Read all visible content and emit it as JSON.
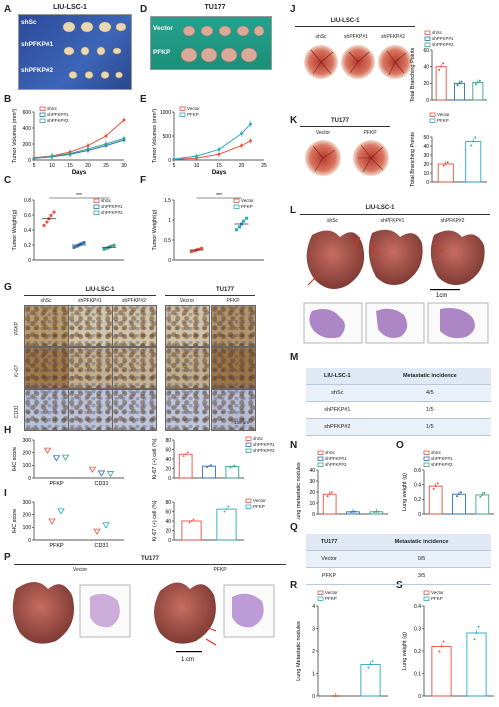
{
  "panels": {
    "A": {
      "letter": "A",
      "title": "LIU-LSC-1",
      "rows": [
        "shSc",
        "shPFKP#1",
        "shPFKP#2"
      ]
    },
    "B": {
      "letter": "B",
      "ylabel": "Tumor Volumes (mm³)",
      "xlabel": "Days",
      "legend": [
        "shSc",
        "shPFKP#1",
        "shPFKP#2"
      ]
    },
    "C": {
      "letter": "C",
      "ylabel": "Tumor Weight(g)",
      "legend": [
        "shSc",
        "shPFKP#1",
        "shPFKP#2"
      ],
      "sig": "***"
    },
    "D": {
      "letter": "D",
      "title": "TU177",
      "rows": [
        "Vector",
        "PFKP"
      ]
    },
    "E": {
      "letter": "E",
      "ylabel": "Tumor Volumes (mm³)",
      "xlabel": "Days",
      "legend": [
        "Vector",
        "PFKP"
      ]
    },
    "F": {
      "letter": "F",
      "ylabel": "Tumor Weight(g)",
      "legend": [
        "Vector",
        "PFKP"
      ],
      "sig": "***"
    },
    "G": {
      "letter": "G",
      "group1": "LIU-LSC-1",
      "group2": "TU177",
      "cols": [
        "shSc",
        "shPFKP#1",
        "shPFKP#2",
        "Vecror",
        "PFKP"
      ],
      "rows": [
        "PFKP",
        "Ki-67",
        "CD31"
      ],
      "scale": "100 μm"
    },
    "H": {
      "letter": "H",
      "ylabel": "IHC score",
      "xcats": [
        "PFKP",
        "CD31"
      ],
      "ylabel2": "Ki-67 (+) cell (%)",
      "legend": [
        "shSc",
        "shPFKP#1",
        "shPFKP#2"
      ]
    },
    "I": {
      "letter": "I",
      "ylabel": "IHC score",
      "xcats": [
        "PFKP",
        "CD31"
      ],
      "ylabel2": "Ki-67 (+) cell (%)",
      "legend": [
        "Vector",
        "PFKP"
      ]
    },
    "J": {
      "letter": "J",
      "title": "LIU-LSC-1",
      "cols": [
        "shSc",
        "shPFKP#1",
        "shPFKP#2"
      ],
      "ylabel": "Total Branching Points",
      "legend": [
        "shSc",
        "shPFKP#1",
        "shPFKP#2"
      ]
    },
    "K": {
      "letter": "K",
      "title": "TU177",
      "cols": [
        "Vector",
        "PFKP"
      ],
      "ylabel": "Total Branching Points",
      "legend": [
        "Vector",
        "PFKP"
      ]
    },
    "L": {
      "letter": "L",
      "title": "LIU-LSC-1",
      "cols": [
        "shSc",
        "shPFKP#1",
        "shPFKP#2"
      ],
      "scale": "1cm"
    },
    "M": {
      "letter": "M",
      "header": [
        "LIU-LSC-1",
        "Metastatic incidence"
      ],
      "rows": [
        [
          "shSc",
          "4/5"
        ],
        [
          "shPFKP#1",
          "1/5"
        ],
        [
          "shPFKP#2",
          "1/5"
        ]
      ]
    },
    "N": {
      "letter": "N",
      "ylabel": "Lung metastatic nodules",
      "legend": [
        "shSc",
        "shPFKP#1",
        "shPFKP#2"
      ]
    },
    "O": {
      "letter": "O",
      "ylabel": "Lung weight (g)",
      "legend": [
        "shSc",
        "shPFKP#1",
        "shPFKP#2"
      ]
    },
    "P": {
      "letter": "P",
      "title": "TU177",
      "cols": [
        "Vector",
        "PFKP"
      ],
      "scale": "1 cm"
    },
    "Q": {
      "letter": "Q",
      "header": [
        "TU177",
        "Metastatic incidence"
      ],
      "rows": [
        [
          "Vector",
          "0/5"
        ],
        [
          "PFKP",
          "3/5"
        ]
      ]
    },
    "R": {
      "letter": "R",
      "ylabel": "Lung Metastatic nodules",
      "legend": [
        "Vector",
        "PFKP"
      ]
    },
    "S": {
      "letter": "S",
      "ylabel": "Lung weight (g)",
      "legend": [
        "Vector",
        "PFKP"
      ]
    }
  },
  "colors": {
    "red": "#e5533d",
    "blue": "#2a6fb7",
    "green": "#36a38a",
    "cyan": "#2aa8c9",
    "blueTumor": "#3a64b4"
  },
  "chart_data": [
    {
      "panel": "B",
      "type": "line",
      "x": [
        5,
        10,
        15,
        20,
        25,
        30
      ],
      "series": [
        {
          "name": "shSc",
          "values": [
            30,
            50,
            100,
            180,
            300,
            500
          ]
        },
        {
          "name": "shPFKP#1",
          "values": [
            20,
            40,
            70,
            120,
            180,
            250
          ]
        },
        {
          "name": "shPFKP#2",
          "values": [
            25,
            45,
            80,
            140,
            200,
            270
          ]
        }
      ],
      "ylim": [
        0,
        600
      ],
      "xlim": [
        5,
        30
      ]
    },
    {
      "panel": "C",
      "type": "scatter",
      "categories": [
        "shSc",
        "shPFKP#1",
        "shPFKP#2"
      ],
      "values": [
        0.55,
        0.2,
        0.17
      ],
      "ylim": [
        0,
        0.8
      ]
    },
    {
      "panel": "E",
      "type": "line",
      "x": [
        5,
        10,
        15,
        20,
        22
      ],
      "series": [
        {
          "name": "Vector",
          "values": [
            10,
            40,
            120,
            300,
            400
          ]
        },
        {
          "name": "PFKP",
          "values": [
            20,
            80,
            220,
            550,
            750
          ]
        }
      ],
      "ylim": [
        0,
        1000
      ],
      "xlim": [
        5,
        25
      ]
    },
    {
      "panel": "F",
      "type": "scatter",
      "categories": [
        "Vector",
        "PFKP"
      ],
      "values": [
        0.25,
        0.9
      ],
      "ylim": [
        0,
        1.5
      ]
    },
    {
      "panel": "J",
      "type": "bar",
      "categories": [
        "shSc",
        "shPFKP#1",
        "shPFKP#2"
      ],
      "values": [
        40,
        20,
        21
      ],
      "ylim": [
        0,
        60
      ]
    },
    {
      "panel": "K",
      "type": "bar",
      "categories": [
        "Vector",
        "PFKP"
      ],
      "values": [
        20,
        45
      ],
      "ylim": [
        0,
        50
      ]
    },
    {
      "panel": "N",
      "type": "bar",
      "categories": [
        "shSc",
        "shPFKP#1",
        "shPFKP#2"
      ],
      "values": [
        18,
        2,
        2
      ],
      "ylim": [
        0,
        40
      ]
    },
    {
      "panel": "O",
      "type": "bar",
      "categories": [
        "shSc",
        "shPFKP#1",
        "shPFKP#2"
      ],
      "values": [
        0.38,
        0.27,
        0.26
      ],
      "ylim": [
        0,
        0.6
      ]
    },
    {
      "panel": "R",
      "type": "bar",
      "categories": [
        "Vector",
        "PFKP"
      ],
      "values": [
        0,
        1.4
      ],
      "ylim": [
        0,
        4
      ]
    },
    {
      "panel": "S",
      "type": "bar",
      "categories": [
        "Vector",
        "PFKP"
      ],
      "values": [
        0.22,
        0.28
      ],
      "ylim": [
        0,
        0.4
      ]
    }
  ]
}
